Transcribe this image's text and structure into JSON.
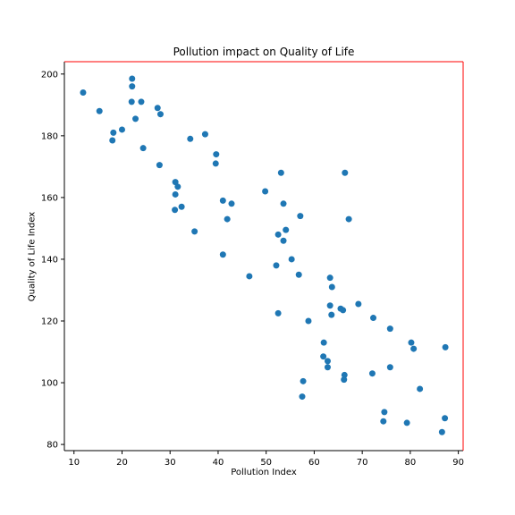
{
  "chart_data": {
    "type": "scatter",
    "title": "Pollution impact on Quality of Life",
    "xlabel": "Pollution Index",
    "ylabel": "Quality of Life Index",
    "xlim": [
      8,
      91
    ],
    "ylim": [
      78,
      204
    ],
    "xticks": [
      10,
      20,
      30,
      40,
      50,
      60,
      70,
      80,
      90
    ],
    "yticks": [
      80,
      100,
      120,
      140,
      160,
      180,
      200
    ],
    "grid": false,
    "colors": {
      "marker": "#1f77b4",
      "axes_edge": "#ff0000",
      "axes_other": "#000000"
    },
    "series": [
      {
        "points": [
          [
            11.9,
            194.0
          ],
          [
            15.3,
            188.0
          ],
          [
            18.2,
            181.0
          ],
          [
            18.0,
            178.5
          ],
          [
            20.0,
            182.0
          ],
          [
            22.0,
            191.0
          ],
          [
            22.1,
            198.5
          ],
          [
            22.1,
            196.0
          ],
          [
            22.8,
            185.5
          ],
          [
            24.0,
            191.0
          ],
          [
            24.4,
            176.0
          ],
          [
            27.4,
            189.0
          ],
          [
            28.0,
            187.0
          ],
          [
            27.8,
            170.5
          ],
          [
            31.1,
            165.0
          ],
          [
            31.6,
            163.5
          ],
          [
            31.1,
            161.0
          ],
          [
            31.0,
            156.0
          ],
          [
            32.4,
            157.0
          ],
          [
            34.2,
            179.0
          ],
          [
            35.1,
            149.0
          ],
          [
            37.3,
            180.5
          ],
          [
            39.6,
            174.0
          ],
          [
            39.5,
            171.0
          ],
          [
            41.0,
            159.0
          ],
          [
            41.0,
            141.5
          ],
          [
            41.9,
            153.0
          ],
          [
            42.8,
            158.0
          ],
          [
            46.5,
            134.5
          ],
          [
            49.8,
            162.0
          ],
          [
            52.1,
            138.0
          ],
          [
            52.5,
            148.0
          ],
          [
            53.1,
            168.0
          ],
          [
            52.5,
            122.5
          ],
          [
            53.6,
            158.0
          ],
          [
            53.6,
            146.0
          ],
          [
            54.1,
            149.5
          ],
          [
            55.3,
            140.0
          ],
          [
            56.8,
            135.0
          ],
          [
            57.1,
            154.0
          ],
          [
            57.7,
            100.5
          ],
          [
            57.5,
            95.5
          ],
          [
            58.8,
            120.0
          ],
          [
            62.0,
            113.0
          ],
          [
            61.9,
            108.5
          ],
          [
            62.8,
            107.0
          ],
          [
            62.8,
            105.0
          ],
          [
            63.3,
            134.0
          ],
          [
            63.3,
            125.0
          ],
          [
            63.6,
            122.0
          ],
          [
            63.7,
            131.0
          ],
          [
            65.5,
            124.0
          ],
          [
            66.0,
            123.5
          ],
          [
            66.2,
            101.0
          ],
          [
            66.3,
            102.5
          ],
          [
            66.4,
            168.0
          ],
          [
            67.2,
            153.0
          ],
          [
            69.2,
            125.5
          ],
          [
            72.1,
            103.0
          ],
          [
            72.3,
            121.0
          ],
          [
            74.4,
            87.5
          ],
          [
            74.6,
            90.5
          ],
          [
            75.8,
            117.5
          ],
          [
            75.8,
            105.0
          ],
          [
            79.3,
            87.0
          ],
          [
            80.2,
            113.0
          ],
          [
            80.7,
            111.0
          ],
          [
            82.0,
            98.0
          ],
          [
            86.6,
            84.0
          ],
          [
            87.2,
            88.5
          ],
          [
            87.3,
            111.5
          ]
        ]
      }
    ]
  }
}
